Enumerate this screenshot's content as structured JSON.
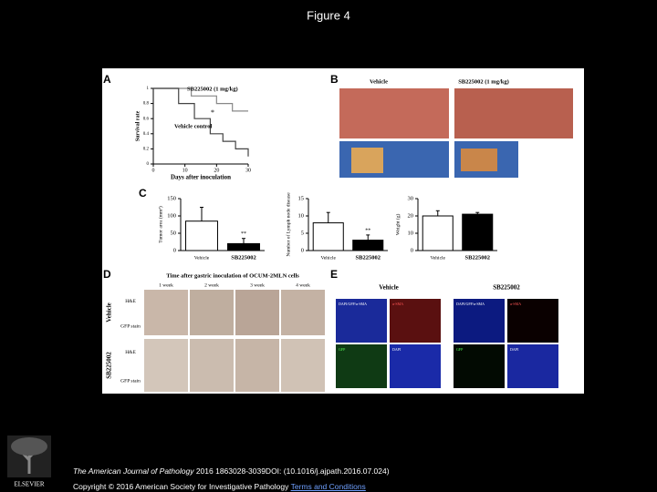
{
  "header": {
    "title": "Figure 4"
  },
  "figure": {
    "panel_labels": [
      "A",
      "B",
      "C",
      "D",
      "E"
    ],
    "survival": {
      "y_label": "Survival rate",
      "x_label": "Days after inoculation",
      "xlim": [
        0,
        30
      ],
      "ylim": [
        0,
        1
      ],
      "xticks": [
        0,
        10,
        20,
        30
      ],
      "yticks": [
        0,
        0.2,
        0.4,
        0.6,
        0.8,
        1
      ],
      "annotation": "*",
      "series": [
        {
          "name": "SB225002 (1 mg/kg)",
          "x": [
            0,
            12,
            20,
            25,
            30
          ],
          "values": [
            1,
            0.9,
            0.8,
            0.7,
            0.7
          ]
        },
        {
          "name": "Vehicle control",
          "x": [
            0,
            8,
            13,
            18,
            22,
            26,
            30
          ],
          "values": [
            1,
            0.8,
            0.6,
            0.4,
            0.3,
            0.2,
            0.1
          ]
        }
      ]
    },
    "photos": {
      "labels": [
        "Vehicle",
        "SB225002 (1 mg/kg)"
      ]
    },
    "bars": [
      {
        "y_label": "Tumor area (mm²)",
        "ylim": [
          0,
          150
        ],
        "yticks": [
          0,
          50,
          100,
          150
        ],
        "categories": [
          "Vehicle",
          "SB225002"
        ],
        "values": [
          85,
          20
        ],
        "errors": [
          40,
          15
        ],
        "annotation": "**"
      },
      {
        "y_label": "Number of Lymph node disease",
        "ylim": [
          0,
          15
        ],
        "yticks": [
          0,
          5,
          10,
          15
        ],
        "categories": [
          "Vehicle",
          "SB225002"
        ],
        "values": [
          8,
          3
        ],
        "errors": [
          3,
          1.5
        ],
        "annotation": "**"
      },
      {
        "y_label": "Weight (g)",
        "ylim": [
          0,
          30
        ],
        "yticks": [
          0,
          10,
          20,
          30
        ],
        "categories": [
          "Vehicle",
          "SB225002"
        ],
        "values": [
          20,
          21
        ],
        "errors": [
          3,
          1
        ]
      }
    ],
    "histology": {
      "title": "Time after gastric inoculation of OCUM-2MLN cells",
      "columns": [
        "1 week",
        "2 week",
        "3 week",
        "4 week"
      ],
      "groups": [
        "Vehicle",
        "SB225002"
      ],
      "stains": [
        "H&E",
        "GFP stain"
      ]
    },
    "fluorescence": {
      "groups": [
        "Vehicle",
        "SB225002"
      ],
      "cells": [
        "DAPI/GFP/α-SMA",
        "α-SMA",
        "GFP",
        "DAPI"
      ]
    }
  },
  "footer": {
    "logo": "ELSEVIER",
    "journal": "The American Journal of Pathology",
    "citation": "2016 1863028-3039DOI: (10.1016/j.ajpath.2016.07.024)",
    "copyright": "Copyright © 2016 American Society for Investigative Pathology",
    "link": "Terms and Conditions"
  }
}
